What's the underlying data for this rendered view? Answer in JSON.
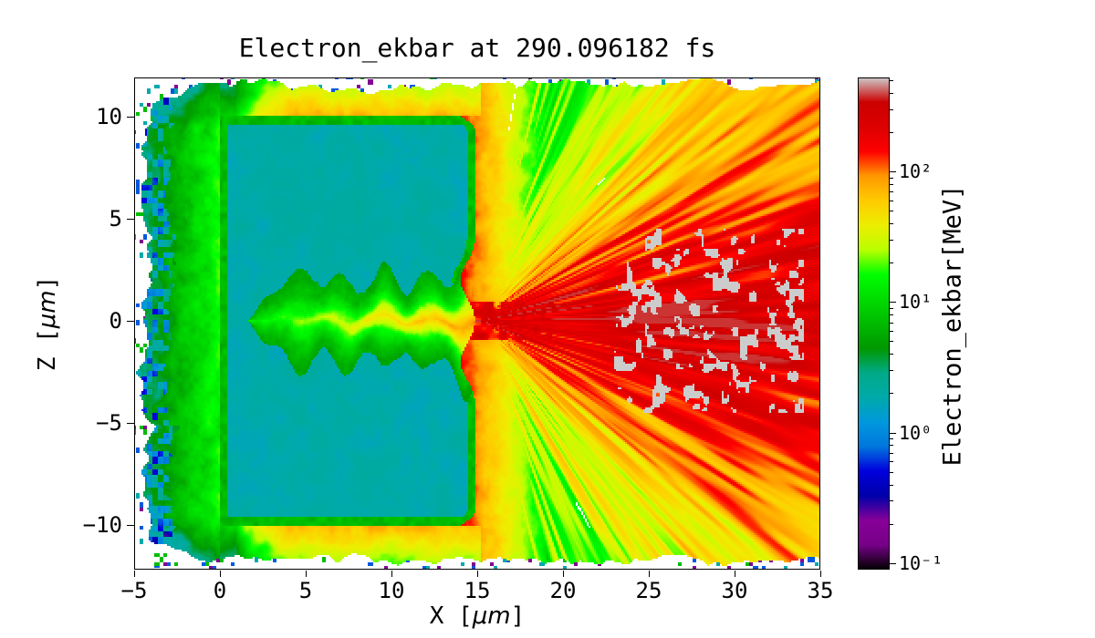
{
  "figure": {
    "title": "Electron_ekbar at 290.096182 fs",
    "xlabel": {
      "prefix": "X [",
      "math": "μm",
      "suffix": "]"
    },
    "ylabel": {
      "prefix": "Z [",
      "math": "μm",
      "suffix": "]"
    }
  },
  "chart_data": {
    "type": "heatmap",
    "title": "Electron_ekbar at 290.096182 fs",
    "xlabel": "X [μm]",
    "ylabel": "Z [μm]",
    "xlim": [
      -5,
      35
    ],
    "ylim": [
      -12.17,
      11.9
    ],
    "xticks": [
      -5,
      0,
      5,
      10,
      15,
      20,
      25,
      30,
      35
    ],
    "xtick_labels": [
      "−5",
      "0",
      "5",
      "10",
      "15",
      "20",
      "25",
      "30",
      "35"
    ],
    "yticks": [
      10,
      5,
      0,
      -5,
      -10
    ],
    "ytick_labels": [
      "10",
      "5",
      "0",
      "−5",
      "−10"
    ],
    "grid": false,
    "background": "#ffffff",
    "colorbar": {
      "label": "Electron_ekbar[MeV]",
      "scale": "log",
      "log_min": -1.05,
      "log_max": 2.72,
      "ticks": [
        {
          "value": 100,
          "label": "10²"
        },
        {
          "value": 10,
          "label": "10¹"
        },
        {
          "value": 1,
          "label": "10⁰"
        },
        {
          "value": 0.1,
          "label": "10⁻¹"
        }
      ],
      "colormap": "nipy_spectral",
      "colormap_stops": [
        [
          0.0,
          "#000000"
        ],
        [
          0.05,
          "#770088"
        ],
        [
          0.1,
          "#880099"
        ],
        [
          0.15,
          "#0000aa"
        ],
        [
          0.2,
          "#0000dd"
        ],
        [
          0.25,
          "#0077dd"
        ],
        [
          0.3,
          "#0099dd"
        ],
        [
          0.35,
          "#00aaaa"
        ],
        [
          0.4,
          "#00aa88"
        ],
        [
          0.45,
          "#009900"
        ],
        [
          0.5,
          "#00bb00"
        ],
        [
          0.55,
          "#00dd00"
        ],
        [
          0.6,
          "#00ff00"
        ],
        [
          0.65,
          "#bbff00"
        ],
        [
          0.7,
          "#eeee00"
        ],
        [
          0.75,
          "#ffcc00"
        ],
        [
          0.8,
          "#ff9900"
        ],
        [
          0.85,
          "#ff0000"
        ],
        [
          0.9,
          "#dd0000"
        ],
        [
          0.95,
          "#cc0000"
        ],
        [
          1.0,
          "#cccccc"
        ]
      ]
    },
    "features": {
      "target_slab": {
        "x_um": [
          0,
          14.9
        ],
        "z_um": [
          -10,
          10
        ],
        "mean_ekbar_mev": 1.85,
        "edge_ekbar_mev": 6.5
      },
      "heating_channel": {
        "x_um": [
          2,
          15
        ],
        "z_center_um": 0,
        "envelope_halfwidth_um": 2.0,
        "core_ekbar_mev_at_exit": 95
      },
      "exit_fan": {
        "apex_x_um": 15.1,
        "on_axis_ekbar_mev": 330,
        "halo_ekbar_mev": 85
      },
      "hot_spots": {
        "x_um": [
          23,
          34
        ],
        "z_um": [
          -4.5,
          4.5
        ],
        "ekbar_mev": 560
      },
      "preplasma": {
        "x_um": [
          -5,
          0
        ],
        "ekbar_mev": 16
      }
    }
  }
}
